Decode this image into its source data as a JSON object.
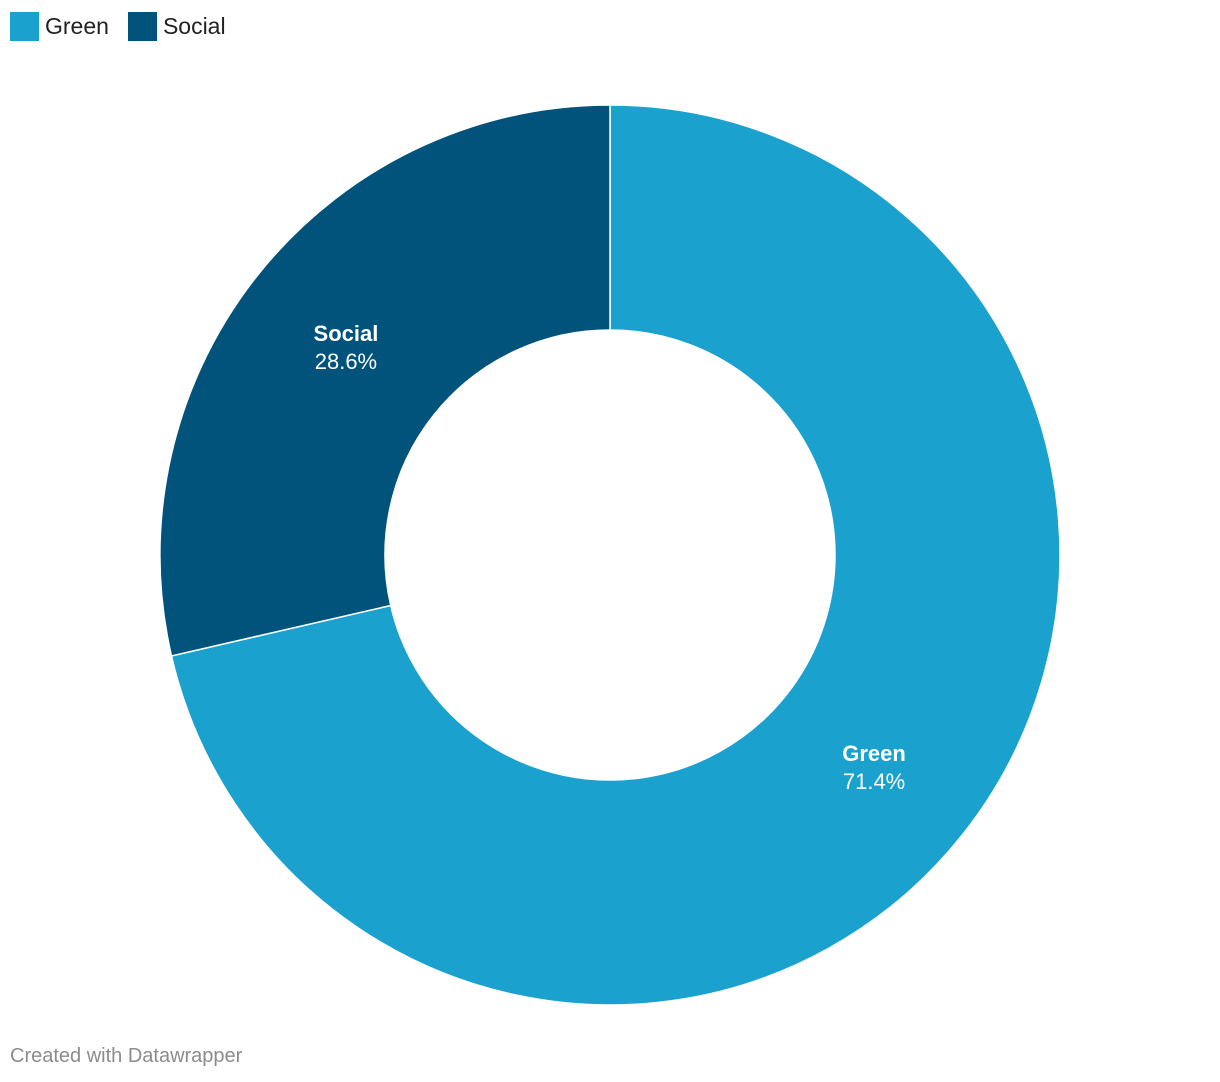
{
  "chart_data": {
    "type": "pie",
    "donut": true,
    "categories": [
      "Green",
      "Social"
    ],
    "values": [
      71.4,
      28.6
    ],
    "value_labels": [
      "71.4%",
      "28.6%"
    ],
    "colors": [
      "#1aa1cd",
      "#01537b"
    ],
    "legend": "top-left"
  },
  "legend": {
    "items": [
      {
        "label": "Green",
        "color": "#1aa1cd"
      },
      {
        "label": "Social",
        "color": "#01537b"
      }
    ]
  },
  "footer": {
    "credit": "Created with Datawrapper"
  }
}
